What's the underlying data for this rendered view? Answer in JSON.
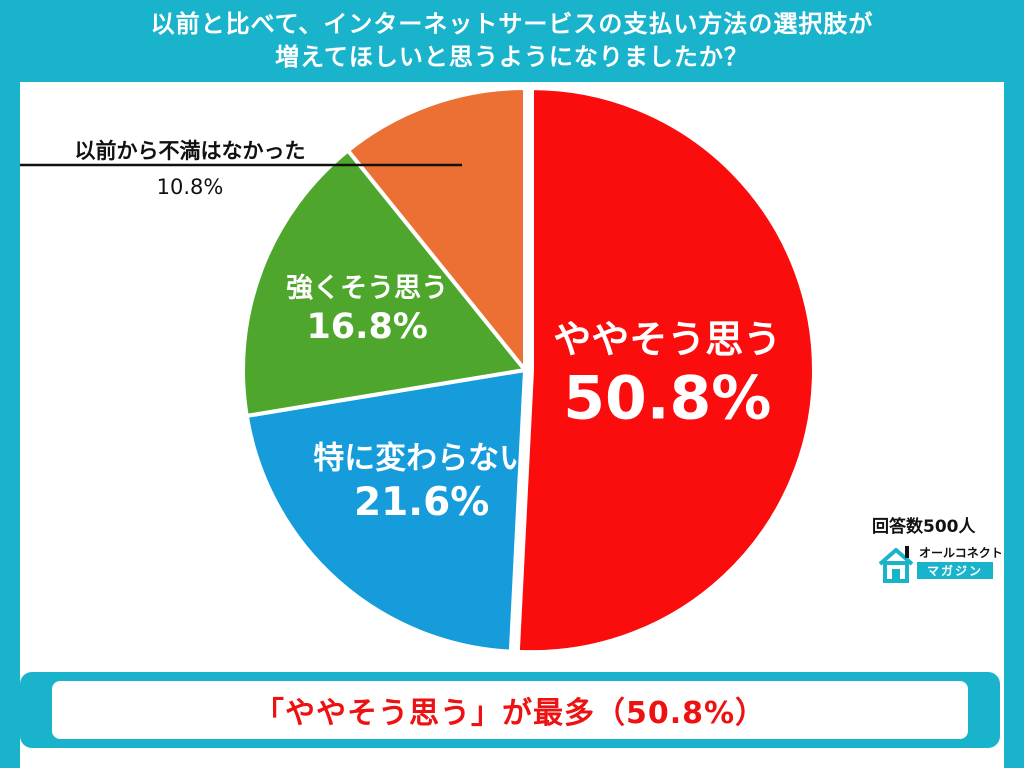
{
  "title": {
    "line1": "以前と比べて、インターネットサービスの支払い方法の選択肢が",
    "line2": "増えてほしいと思うようになりましたか？"
  },
  "chart_data": {
    "type": "pie",
    "categories": [
      "ややそう思う",
      "特に変わらない",
      "強くそう思う",
      "以前から不満はなかった"
    ],
    "values": [
      50.8,
      21.6,
      16.8,
      10.8
    ],
    "value_labels": [
      "50.8%",
      "21.6%",
      "16.8%",
      "10.8%"
    ],
    "colors": [
      "#fb0d0d",
      "#169cdb",
      "#4ea62c",
      "#ec7034"
    ],
    "direction": "clockwise",
    "start": "12 o'clock",
    "legend": "none"
  },
  "respondents": "回答数500人",
  "logo": {
    "icon": "house-icon",
    "line1": "オールコネクト",
    "line2": "マガジン"
  },
  "summary": "「ややそう思う」が最多（50.8%）"
}
